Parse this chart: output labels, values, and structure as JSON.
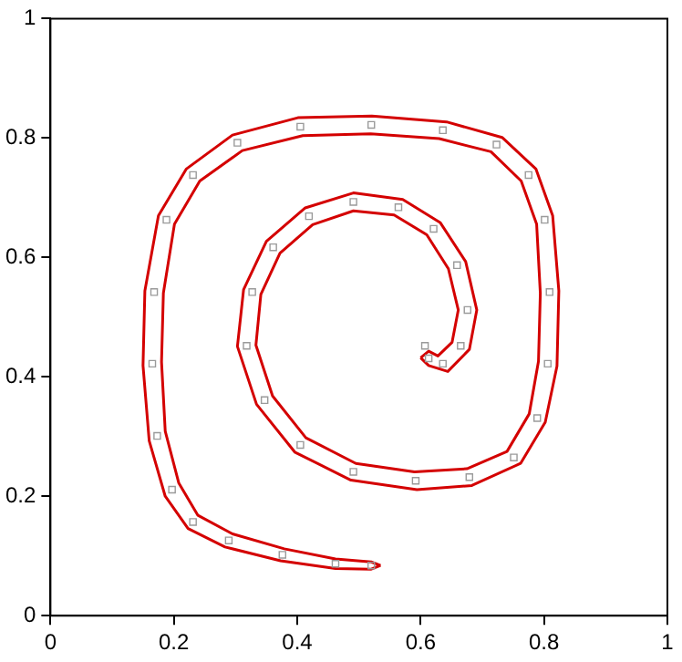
{
  "chart_data": {
    "type": "line",
    "xlim": [
      0,
      1
    ],
    "ylim": [
      0,
      1
    ],
    "xticks": [
      0,
      0.2,
      0.4,
      0.6,
      0.8,
      1
    ],
    "yticks": [
      0,
      0.2,
      0.4,
      0.6,
      0.8,
      1
    ],
    "grid": false,
    "legend": false,
    "marker": "none",
    "line_style": "solid",
    "series": [
      {
        "color": "#d40000",
        "x": [
          0.535,
          0.52,
          0.462,
          0.373,
          0.283,
          0.223,
          0.186,
          0.16,
          0.15,
          0.153,
          0.175,
          0.22,
          0.295,
          0.401,
          0.521,
          0.642,
          0.732,
          0.787,
          0.814,
          0.824,
          0.821,
          0.802,
          0.762,
          0.683,
          0.594,
          0.487,
          0.396,
          0.334,
          0.303,
          0.313,
          0.35,
          0.413,
          0.491,
          0.571,
          0.632,
          0.673,
          0.691,
          0.679,
          0.644,
          0.613,
          0.6
        ],
        "values": [
          0.084,
          0.078,
          0.079,
          0.092,
          0.115,
          0.146,
          0.2,
          0.293,
          0.419,
          0.544,
          0.67,
          0.748,
          0.805,
          0.834,
          0.837,
          0.827,
          0.801,
          0.748,
          0.67,
          0.544,
          0.418,
          0.324,
          0.255,
          0.218,
          0.211,
          0.227,
          0.274,
          0.354,
          0.451,
          0.546,
          0.627,
          0.683,
          0.708,
          0.697,
          0.658,
          0.593,
          0.512,
          0.446,
          0.409,
          0.419,
          0.432
        ]
      },
      {
        "color": "#d40000",
        "x": [
          0.6,
          0.613,
          0.628,
          0.651,
          0.661,
          0.645,
          0.61,
          0.557,
          0.491,
          0.425,
          0.372,
          0.341,
          0.333,
          0.36,
          0.414,
          0.495,
          0.59,
          0.675,
          0.74,
          0.776,
          0.791,
          0.794,
          0.788,
          0.763,
          0.714,
          0.63,
          0.519,
          0.409,
          0.311,
          0.242,
          0.201,
          0.183,
          0.18,
          0.186,
          0.208,
          0.239,
          0.295,
          0.379,
          0.462,
          0.52,
          0.535
        ],
        "values": [
          0.432,
          0.443,
          0.435,
          0.458,
          0.512,
          0.581,
          0.638,
          0.671,
          0.678,
          0.655,
          0.607,
          0.538,
          0.453,
          0.368,
          0.298,
          0.255,
          0.241,
          0.246,
          0.275,
          0.338,
          0.426,
          0.54,
          0.656,
          0.728,
          0.777,
          0.799,
          0.807,
          0.804,
          0.779,
          0.728,
          0.656,
          0.54,
          0.425,
          0.309,
          0.222,
          0.168,
          0.137,
          0.112,
          0.095,
          0.09,
          0.084
        ]
      },
      {
        "type": "scatter",
        "color": "#9a9a9a",
        "marker": "square",
        "x": [
          0.52,
          0.462,
          0.376,
          0.289,
          0.231,
          0.197,
          0.173,
          0.165,
          0.168,
          0.188,
          0.231,
          0.303,
          0.405,
          0.52,
          0.636,
          0.723,
          0.775,
          0.801,
          0.809,
          0.806,
          0.789,
          0.751,
          0.679,
          0.592,
          0.491,
          0.405,
          0.347,
          0.318,
          0.327,
          0.361,
          0.419,
          0.491,
          0.564,
          0.621,
          0.659,
          0.676,
          0.665,
          0.636,
          0.613,
          0.607
        ],
        "values": [
          0.084,
          0.087,
          0.102,
          0.126,
          0.157,
          0.211,
          0.301,
          0.422,
          0.542,
          0.663,
          0.738,
          0.792,
          0.819,
          0.822,
          0.813,
          0.789,
          0.738,
          0.663,
          0.542,
          0.422,
          0.331,
          0.265,
          0.232,
          0.226,
          0.241,
          0.286,
          0.361,
          0.452,
          0.542,
          0.617,
          0.669,
          0.693,
          0.684,
          0.648,
          0.587,
          0.512,
          0.452,
          0.422,
          0.431,
          0.452
        ]
      }
    ]
  }
}
